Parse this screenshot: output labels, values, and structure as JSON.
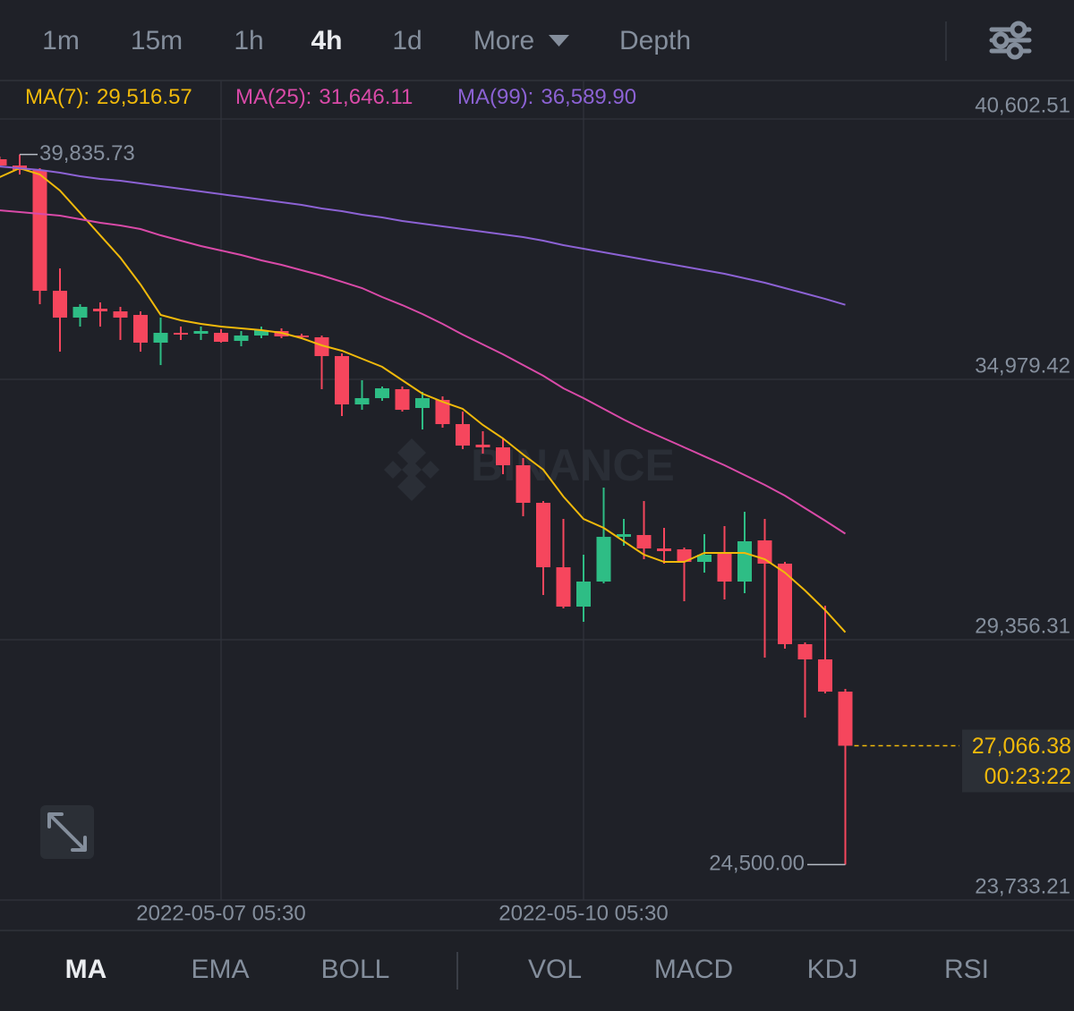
{
  "chart_data": {
    "type": "candlestick",
    "tabs": [
      {
        "label": "1m"
      },
      {
        "label": "15m"
      },
      {
        "label": "1h"
      },
      {
        "label": "4h",
        "active": true
      },
      {
        "label": "1d"
      },
      {
        "label": "More",
        "dropdown": true
      },
      {
        "label": "Depth"
      }
    ],
    "indicators": {
      "main": [
        {
          "label": "MA",
          "active": true
        },
        {
          "label": "EMA"
        },
        {
          "label": "BOLL"
        }
      ],
      "sub": [
        {
          "label": "VOL"
        },
        {
          "label": "MACD"
        },
        {
          "label": "KDJ"
        },
        {
          "label": "RSI"
        }
      ]
    },
    "watermark": "BINANCE",
    "categories": [
      null,
      null,
      null,
      null,
      null,
      null,
      null,
      null,
      null,
      null,
      null,
      "2022-05-07 05:30",
      null,
      null,
      null,
      null,
      null,
      null,
      null,
      null,
      null,
      null,
      null,
      null,
      null,
      null,
      null,
      null,
      null,
      "2022-05-10 05:30",
      null,
      null,
      null,
      null,
      null,
      null,
      null,
      null,
      null,
      null,
      null,
      null,
      null
    ],
    "candles": {
      "up_color": "#2ebd85",
      "down_color": "#f6465d",
      "open": [
        39733,
        39598,
        39501,
        36892,
        36313,
        36506,
        36448,
        36371,
        35772,
        35984,
        35965,
        35984,
        35810,
        35926,
        36023,
        35926,
        35888,
        35482,
        34438,
        34574,
        34767,
        34361,
        34535,
        34013,
        33569,
        33511,
        33124,
        32313,
        30921,
        30071,
        30612,
        31578,
        31617,
        31327,
        31308,
        31037,
        31231,
        30612,
        31501,
        30999,
        29260,
        28931,
        28235
      ],
      "high": [
        39791,
        39835.73,
        39540,
        37376,
        36603,
        36641,
        36545,
        36448,
        36313,
        36119,
        36119,
        36062,
        36023,
        36119,
        36081,
        35965,
        35926,
        35540,
        34960,
        34825,
        34825,
        34709,
        34612,
        34284,
        33859,
        33704,
        33279,
        32351,
        31965,
        31192,
        32641,
        31965,
        32351,
        31772,
        31347,
        31636,
        31810,
        32119,
        31965,
        31037,
        29298,
        30091,
        28293
      ],
      "low": [
        39559,
        39404,
        36603,
        35578,
        36119,
        36119,
        35830,
        35578,
        35288,
        35830,
        35830,
        35772,
        35694,
        35868,
        35868,
        35849,
        34767,
        34187,
        34322,
        34516,
        34284,
        33897,
        33936,
        33472,
        33376,
        32931,
        32023,
        30322,
        30033,
        29743,
        30573,
        31385,
        31095,
        30999,
        30187,
        30805,
        30226,
        30361,
        28970,
        29163,
        27675,
        28197,
        24500
      ],
      "close": [
        39598,
        39501,
        36892,
        36313,
        36545,
        36448,
        36313,
        35772,
        35984,
        35946,
        36023,
        35791,
        35926,
        36042,
        35907,
        35888,
        35482,
        34438,
        34574,
        34786,
        34322,
        34574,
        34013,
        33549,
        33511,
        33124,
        32313,
        30921,
        30071,
        30612,
        31578,
        31636,
        31327,
        31269,
        31037,
        31192,
        30612,
        31482,
        30999,
        29260,
        28931,
        28235,
        27066.38
      ]
    },
    "series": [
      {
        "name": "MA(7):",
        "color": "#f0b90b",
        "last_value_label": "29,516.57",
        "values": [
          39346,
          39540,
          39404,
          39057,
          38574,
          38090,
          37607,
          37028,
          36371,
          36255,
          36177,
          36119,
          36081,
          36042,
          35984,
          35868,
          35714,
          35598,
          35424,
          35250,
          34960,
          34670,
          34496,
          34342,
          33994,
          33704,
          33356,
          33028,
          32448,
          31965,
          31772,
          31482,
          31192,
          31037,
          31037,
          31231,
          31231,
          31231,
          31095,
          30805,
          30419,
          29994,
          29516.57
        ]
      },
      {
        "name": "MA(25):",
        "color": "#d94aa8",
        "last_value_label": "31,646.11",
        "values": [
          38631,
          38593,
          38554,
          38516,
          38438,
          38361,
          38303,
          38226,
          38090,
          37975,
          37859,
          37762,
          37665,
          37549,
          37453,
          37337,
          37221,
          37086,
          36950,
          36757,
          36583,
          36390,
          36177,
          35946,
          35733,
          35520,
          35288,
          35057,
          34786,
          34574,
          34342,
          34110,
          33897,
          33704,
          33511,
          33317,
          33124,
          32912,
          32699,
          32467,
          32197,
          31926,
          31646.11
        ]
      },
      {
        "name": "MA(99):",
        "color": "#8c62d4",
        "last_value_label": "36,589.90",
        "values": [
          39578,
          39540,
          39501,
          39443,
          39366,
          39308,
          39269,
          39211,
          39153,
          39095,
          39037,
          38979,
          38921,
          38863,
          38805,
          38747,
          38670,
          38612,
          38535,
          38477,
          38400,
          38342,
          38284,
          38226,
          38168,
          38110,
          38052,
          37975,
          37878,
          37801,
          37723,
          37646,
          37569,
          37491,
          37414,
          37337,
          37260,
          37163,
          37066,
          36950,
          36834,
          36718,
          36589.9
        ]
      }
    ],
    "ylim": [
      23733.21,
      40602.51
    ],
    "yticks": [
      {
        "value": 40602.51,
        "label": "40,602.51"
      },
      {
        "value": 34979.42,
        "label": "34,979.42"
      },
      {
        "value": 29356.31,
        "label": "29,356.31"
      },
      {
        "value": 23733.21,
        "label": "23,733.21"
      }
    ],
    "grid": true,
    "annotations": {
      "high": {
        "value": 39835.73,
        "label": "39,835.73"
      },
      "low": {
        "value": 24500,
        "label": "24,500.00"
      },
      "last_price": {
        "value": 27066.38,
        "label": "27,066.38",
        "countdown": "00:23:22",
        "color": "#f0b90b"
      }
    }
  }
}
